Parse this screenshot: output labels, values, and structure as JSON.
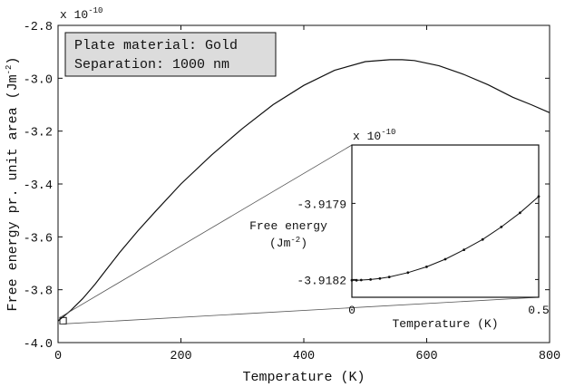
{
  "chart_data": [
    {
      "type": "line",
      "ylabel": "Free energy pr. unit area (Jm",
      "ylabel_sup": "-2",
      "ylabel_close": ")",
      "xlabel": "Temperature (K)",
      "y_multiplier": "x 10",
      "y_multiplier_exp": "-10",
      "xlim": [
        0,
        800
      ],
      "ylim": [
        -4.0,
        -2.8
      ],
      "x_ticks": [
        0,
        200,
        400,
        600,
        800
      ],
      "x_tick_labels": [
        "0",
        "200",
        "400",
        "600",
        "800"
      ],
      "y_ticks": [
        -4.0,
        -3.8,
        -3.6,
        -3.4,
        -3.2,
        -3.0,
        -2.8
      ],
      "y_tick_labels": [
        "-4.0",
        "-3.8",
        "-3.6",
        "-3.4",
        "-3.2",
        "-3.0",
        "-2.8"
      ],
      "legend": [
        "Plate material: Gold",
        "Separation: 1000 nm"
      ],
      "legend_position": "top-left",
      "series": [
        {
          "x": [
            0,
            20,
            40,
            60,
            80,
            100,
            130,
            160,
            200,
            250,
            300,
            350,
            400,
            450,
            500,
            540,
            560,
            580,
            620,
            660,
            700,
            740,
            770,
            800
          ],
          "y": [
            -3.918,
            -3.88,
            -3.834,
            -3.78,
            -3.72,
            -3.66,
            -3.577,
            -3.5,
            -3.4,
            -3.29,
            -3.19,
            -3.1,
            -3.027,
            -2.97,
            -2.937,
            -2.93,
            -2.93,
            -2.933,
            -2.953,
            -2.985,
            -3.025,
            -3.072,
            -3.1,
            -3.13
          ]
        }
      ]
    },
    {
      "type": "line",
      "inset_of": 0,
      "ylabel": "Free energy",
      "ylabel_line2": "(Jm",
      "ylabel_sup": "-2",
      "ylabel_close": ")",
      "xlabel": "Temperature (K)",
      "y_multiplier": "x 10",
      "y_multiplier_exp": "-10",
      "xlim": [
        0,
        0.5
      ],
      "ylim": [
        -3.91827,
        -3.91767
      ],
      "x_ticks": [
        0,
        0.5
      ],
      "x_tick_labels": [
        "0",
        "0.5"
      ],
      "y_ticks": [
        -3.9182,
        -3.9179
      ],
      "y_tick_labels": [
        "-3.9182",
        "-3.9179"
      ],
      "zoom_box_x": [
        0,
        12
      ],
      "zoom_box_y": [
        -3.93,
        -3.905
      ],
      "series": [
        {
          "x": [
            0,
            0.0125,
            0.025,
            0.05,
            0.075,
            0.1,
            0.15,
            0.2,
            0.25,
            0.3,
            0.35,
            0.4,
            0.45,
            0.5
          ],
          "y": [
            -3.918203,
            -3.918203,
            -3.918202,
            -3.9182,
            -3.918196,
            -3.91819,
            -3.918173,
            -3.91815,
            -3.91812,
            -3.918083,
            -3.918042,
            -3.917993,
            -3.917937,
            -3.917873
          ],
          "markers": true
        }
      ]
    }
  ]
}
